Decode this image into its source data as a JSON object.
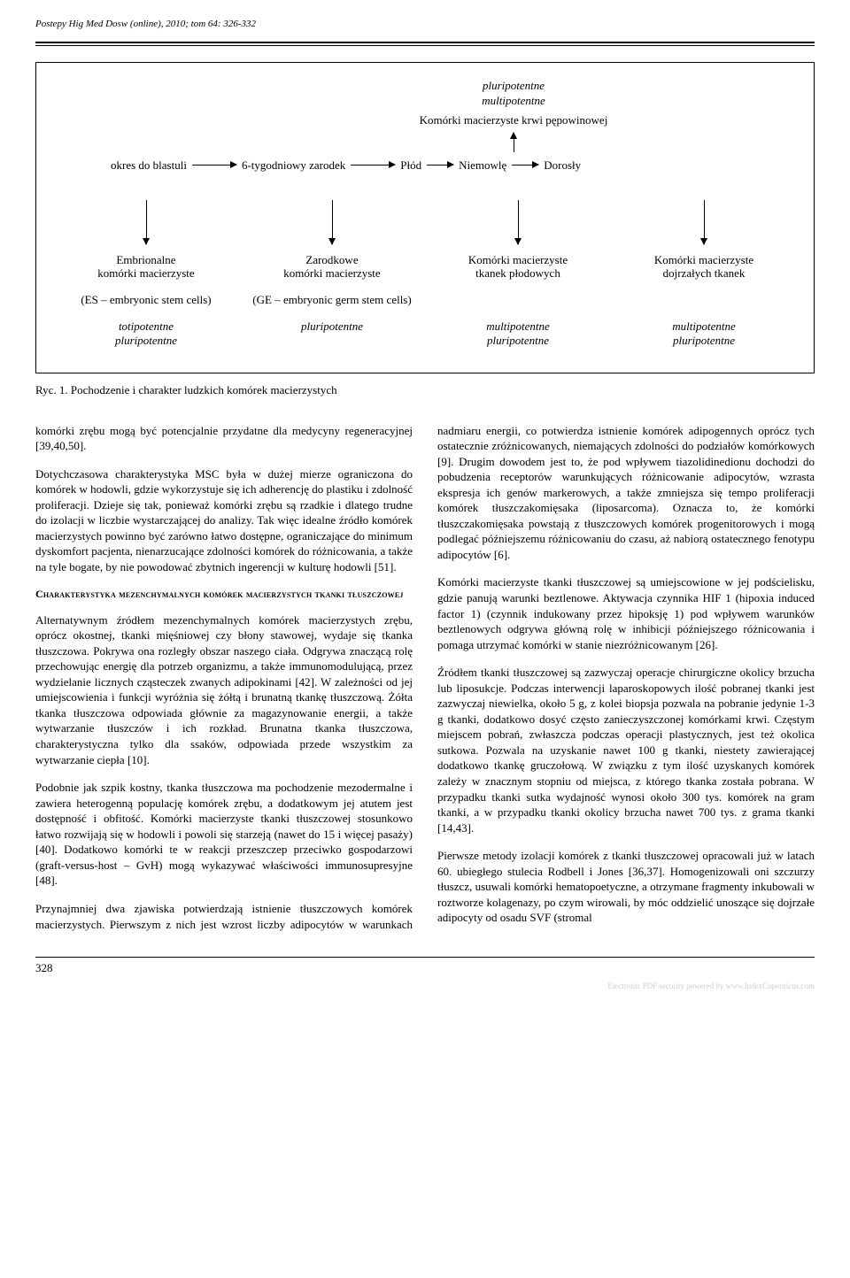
{
  "header": {
    "citation": "Postepy Hig Med Dosw (online), 2010; tom 64: 326-332"
  },
  "figure": {
    "top_italic_line1": "pluripotentne",
    "top_italic_line2": "multipotentne",
    "top_label": "Komórki macierzyste krwi pępowinowej",
    "timeline": {
      "t1": "okres do blastuli",
      "t2": "6-tygodniowy zarodek",
      "t3": "Płód",
      "t4": "Niemowlę",
      "t5": "Dorosły"
    },
    "cols": {
      "c1": {
        "title1": "Embrionalne",
        "title2": "komórki macierzyste",
        "sub": "(ES – embryonic stem cells)",
        "ital1": "totipotentne",
        "ital2": "pluripotentne"
      },
      "c2": {
        "title1": "Zarodkowe",
        "title2": "komórki macierzyste",
        "sub": "(GE – embryonic germ stem cells)",
        "ital1": "pluripotentne",
        "ital2": ""
      },
      "c3": {
        "title1": "Komórki macierzyste",
        "title2": "tkanek płodowych",
        "sub": "",
        "ital1": "multipotentne",
        "ital2": "pluripotentne"
      },
      "c4": {
        "title1": "Komórki macierzyste",
        "title2": "dojrzałych tkanek",
        "sub": "",
        "ital1": "multipotentne",
        "ital2": "pluripotentne"
      }
    },
    "caption": "Ryc. 1. Pochodzenie i charakter ludzkich komórek macierzystych"
  },
  "body": {
    "p1": "komórki zrębu mogą być potencjalnie przydatne dla medycyny regeneracyjnej [39,40,50].",
    "p2": "Dotychczasowa charakterystyka MSC była w dużej mierze ograniczona do komórek w hodowli, gdzie wykorzystuje się ich adherencję do plastiku i zdolność proliferacji. Dzieje się tak, ponieważ komórki zrębu są rzadkie i dlatego trudne do izolacji w liczbie wystarczającej do analizy. Tak więc idealne źródło komórek macierzystych powinno być zarówno łatwo dostępne, ograniczające do minimum dyskomfort pacjenta, nienarzucające zdolności komórek do różnicowania, a także na tyle bogate, by nie powodować zbytnich ingerencji w kulturę hodowli [51].",
    "h1": "Charakterystyka mezenchymalnych komórek macierzystych tkanki tłuszczowej",
    "p3": "Alternatywnym źródłem mezenchymalnych komórek macierzystych zrębu, oprócz okostnej, tkanki mięśniowej czy błony stawowej, wydaje się tkanka tłuszczowa. Pokrywa ona rozległy obszar naszego ciała. Odgrywa znaczącą rolę przechowując energię dla potrzeb organizmu, a także immunomodulującą, przez wydzielanie licznych cząsteczek zwanych adipokinami [42]. W zależności od jej umiejscowienia i funkcji wyróżnia się żółtą i brunatną tkankę tłuszczową. Żółta tkanka tłuszczowa odpowiada głównie za magazynowanie energii, a także wytwarzanie tłuszczów i ich rozkład. Brunatna tkanka tłuszczowa, charakterystyczna tylko dla ssaków, odpowiada przede wszystkim za wytwarzanie ciepła [10].",
    "p4": "Podobnie jak szpik kostny, tkanka tłuszczowa ma pochodzenie mezodermalne i zawiera heterogenną populację komórek zrębu, a dodatkowym jej atutem jest dostępność i obfitość. Komórki macierzyste tkanki tłuszczowej stosunkowo łatwo rozwijają się w hodowli i powoli się starzeją (nawet do 15 i więcej pasaży) [40]. Dodatkowo komórki te w reakcji przeszczep przeciwko gospodarzowi (graft-versus-host – GvH) mogą wykazywać właściwości immunosupresyjne [48].",
    "p5": "Przynajmniej dwa zjawiska potwierdzają istnienie tłuszczowych komórek macierzystych. Pierwszym z nich jest wzrost liczby adipocytów w warunkach nadmiaru energii, co potwierdza istnienie komórek adipogennych oprócz tych ostatecznie zróżnicowanych, niemających zdolności do podziałów komórkowych [9]. Drugim dowodem jest to, że pod wpływem tiazolidinedionu dochodzi do pobudzenia receptorów warunkujących różnicowanie adipocytów, wzrasta ekspresja ich genów markerowych, a także zmniejsza się tempo proliferacji komórek tłuszczakomięsaka (liposarcoma). Oznacza to, że komórki tłuszczakomięsaka powstają z tłuszczowych komórek progenitorowych i mogą podlegać późniejszemu różnicowaniu do czasu, aż nabiorą ostatecznego fenotypu adipocytów [6].",
    "p6": "Komórki macierzyste tkanki tłuszczowej są umiejscowione w jej podścielisku, gdzie panują warunki beztlenowe. Aktywacja czynnika HIF 1 (hipoxia induced factor 1) (czynnik indukowany przez hipoksję 1) pod wpływem warunków beztlenowych odgrywa główną rolę w inhibicji późniejszego różnicowania i pomaga utrzymać komórki w stanie niezróżnicowanym [26].",
    "p7": "Źródłem tkanki tłuszczowej są zazwyczaj operacje chirurgiczne okolicy brzucha lub liposukcje. Podczas interwencji laparoskopowych ilość pobranej tkanki jest zazwyczaj niewielka, około 5 g, z kolei biopsja pozwala na pobranie jedynie 1-3 g tkanki, dodatkowo dosyć często zanieczyszczonej komórkami krwi. Częstym miejscem pobrań, zwłaszcza podczas operacji plastycznych, jest też okolica sutkowa. Pozwala na uzyskanie nawet 100 g tkanki, niestety zawierającej dodatkowo tkankę gruczołową. W związku z tym ilość uzyskanych komórek zależy w znacznym stopniu od miejsca, z którego tkanka została pobrana. W przypadku tkanki sutka wydajność wynosi około 300 tys. komórek na gram tkanki, a w przypadku tkanki okolicy brzucha nawet 700 tys. z grama tkanki [14,43].",
    "p8": "Pierwsze metody izolacji komórek z tkanki tłuszczowej opracowali już w latach 60. ubiegłego stulecia Rodbell i Jones [36,37]. Homogenizowali oni szczurzy tłuszcz, usuwali komórki hematopoetyczne, a otrzymane fragmenty inkubowali w roztworze kolagenazy, po czym wirowali, by móc oddzielić unoszące się dojrzałe adipocyty od osadu SVF (stromal"
  },
  "page_number": "328",
  "footer_note": "Electronic PDF security powered by www.IndexCopernicus.com"
}
